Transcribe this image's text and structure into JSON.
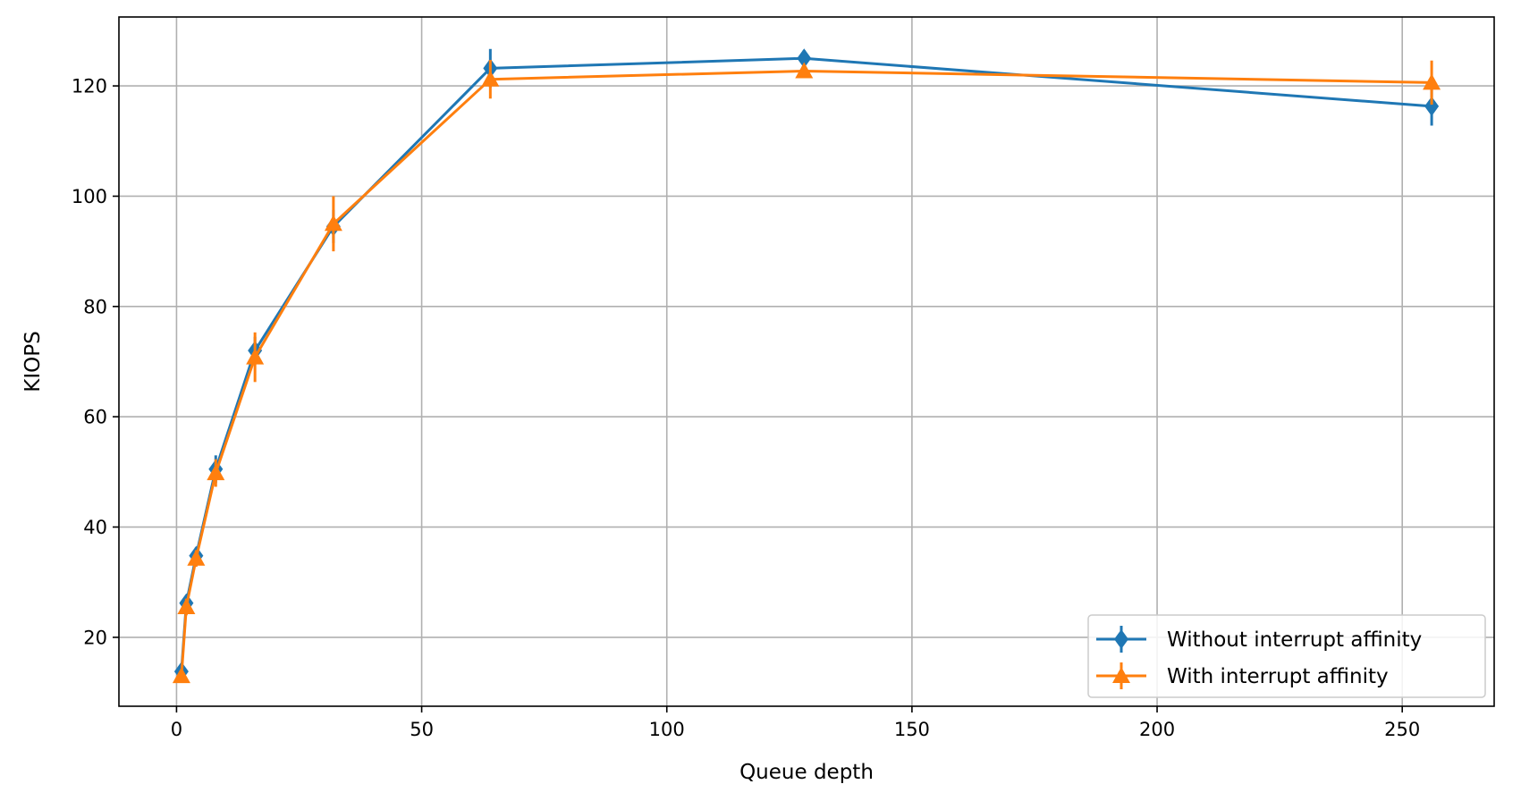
{
  "chart_data": {
    "type": "line",
    "title": "",
    "xlabel": "Queue depth",
    "ylabel": "KIOPS",
    "xlim": [
      -11.75,
      268.75
    ],
    "ylim": [
      7.5,
      132.5
    ],
    "x_ticks": [
      0,
      50,
      100,
      150,
      200,
      250
    ],
    "y_ticks": [
      20,
      40,
      60,
      80,
      100,
      120
    ],
    "grid": true,
    "legend_position": "bottom-right",
    "x": [
      1,
      2,
      4,
      8,
      16,
      32,
      64,
      128,
      256
    ],
    "series": [
      {
        "name": "Without interrupt affinity",
        "color": "#1f77b4",
        "marker": "diamond",
        "values": [
          13.8,
          26.2,
          34.8,
          50.5,
          72.0,
          94.5,
          123.2,
          125.0,
          116.3
        ],
        "errors": [
          1.0,
          1.2,
          1.5,
          2.5,
          2.5,
          3.0,
          3.5,
          1.5,
          3.5
        ]
      },
      {
        "name": "With interrupt affinity",
        "color": "#ff7f0e",
        "marker": "triangle",
        "values": [
          13.0,
          25.5,
          34.3,
          49.8,
          70.8,
          95.0,
          121.2,
          122.7,
          120.6
        ],
        "errors": [
          1.0,
          1.5,
          1.5,
          2.5,
          4.5,
          5.0,
          3.5,
          1.0,
          4.0
        ]
      }
    ]
  }
}
